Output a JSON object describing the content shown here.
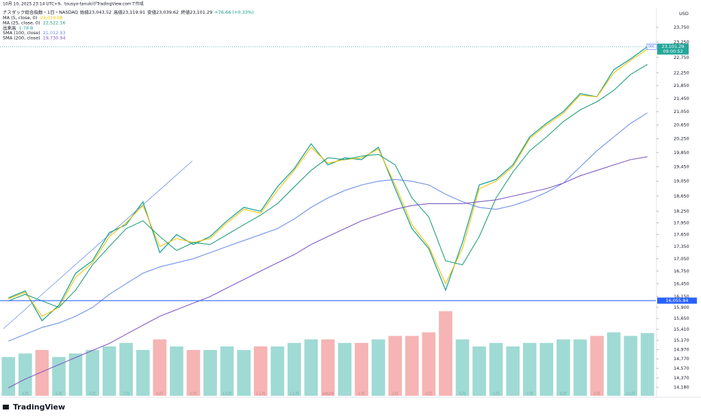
{
  "chart_data": {
    "type": "line",
    "caption": "10月 10, 2025 23:14 UTC+9、tousyo-tanukiがTradingView.comで作成",
    "currency": "USD",
    "brand": "TradingView",
    "ohlc_labels": [
      "始値23,043.52",
      "高値23,119.91",
      "安値23,039.62",
      "終値23,101.29",
      "+76.66 (+0.33%)"
    ],
    "log": true,
    "grid": false,
    "categories": [
      null,
      "4月",
      null,
      "5月",
      null,
      "6月",
      null,
      "7月",
      null,
      "8月",
      null,
      "9月",
      null,
      "10月",
      null,
      "11月",
      null,
      "12月",
      null,
      "2025",
      null,
      "2月",
      null,
      "3月",
      null,
      "4月",
      null,
      "5月",
      null,
      "6月",
      null,
      "7月",
      null,
      "8月",
      null,
      "9月",
      null,
      "10月",
      null
    ],
    "ylim": [
      14010,
      24410
    ],
    "yticks": [
      {
        "value": 14180,
        "label": "14,180"
      },
      {
        "value": 14370,
        "label": "14,370"
      },
      {
        "value": 14570,
        "label": "14,570"
      },
      {
        "value": 14770,
        "label": "14,770"
      },
      {
        "value": 14970,
        "label": "14,970"
      },
      {
        "value": 15170,
        "label": "15,170"
      },
      {
        "value": 15410,
        "label": "15,410"
      },
      {
        "value": 15650,
        "label": "15,650"
      },
      {
        "value": 15900,
        "label": "15,900"
      },
      {
        "value": 16150,
        "label": "16,150"
      },
      {
        "value": 16450,
        "label": "16,450"
      },
      {
        "value": 16750,
        "label": "16,750"
      },
      {
        "value": 17050,
        "label": "17,050"
      },
      {
        "value": 17350,
        "label": "17,350"
      },
      {
        "value": 17650,
        "label": "17,650"
      },
      {
        "value": 17950,
        "label": "17,950"
      },
      {
        "value": 18250,
        "label": "18,250"
      },
      {
        "value": 18650,
        "label": "18,650"
      },
      {
        "value": 19050,
        "label": "19,050"
      },
      {
        "value": 19450,
        "label": "19,450"
      },
      {
        "value": 19850,
        "label": "19,850"
      },
      {
        "value": 20250,
        "label": "20,250"
      },
      {
        "value": 20650,
        "label": "20,650"
      },
      {
        "value": 21050,
        "label": "21,050"
      },
      {
        "value": 21450,
        "label": "21,450"
      },
      {
        "value": 21850,
        "label": "21,850"
      },
      {
        "value": 22250,
        "label": "22,250"
      },
      {
        "value": 22750,
        "label": "22,750"
      },
      {
        "value": 23250,
        "label": "23,250"
      },
      {
        "value": 23750,
        "label": "23,750"
      }
    ],
    "y2lim": [
      0,
      11
    ],
    "up_color": "#8fd3cc",
    "down_color": "#f4a7a7",
    "series": [
      {
        "name": "ナスダック総合指数・1日・NASDAQ",
        "color": "#26a69a",
        "values": [
          16120,
          16280,
          15600,
          15950,
          16700,
          17000,
          17700,
          17900,
          18500,
          17200,
          17650,
          17400,
          17600,
          18000,
          18350,
          18250,
          18900,
          19400,
          20100,
          19500,
          19700,
          19650,
          20000,
          18850,
          17800,
          17300,
          16300,
          17450,
          18950,
          19100,
          19500,
          20300,
          20700,
          21050,
          21600,
          21500,
          22350,
          22700,
          23101.29
        ]
      },
      {
        "name": "MA (5, close, 0)",
        "last_label": "23,019.08",
        "color": "#f2c200",
        "values": [
          16100,
          16250,
          15700,
          15900,
          16600,
          16950,
          17600,
          17950,
          18400,
          17350,
          17550,
          17450,
          17550,
          17950,
          18300,
          18200,
          18800,
          19350,
          20000,
          19550,
          19650,
          19700,
          19950,
          18950,
          17900,
          17350,
          16450,
          17300,
          18850,
          19050,
          19450,
          20250,
          20650,
          21000,
          21550,
          21500,
          22250,
          22650,
          23019.08
        ]
      },
      {
        "name": "MA (25, close, 0)",
        "last_label": "22,522.16",
        "color": "#1e9b7a",
        "values": [
          16050,
          16200,
          16050,
          15900,
          16300,
          16900,
          17350,
          17800,
          18000,
          17600,
          17250,
          17450,
          17400,
          17650,
          17900,
          18150,
          18450,
          18900,
          19350,
          19700,
          19650,
          19750,
          19800,
          19500,
          18600,
          18100,
          17000,
          16900,
          17600,
          18600,
          19300,
          19900,
          20300,
          20750,
          21100,
          21350,
          21700,
          22200,
          22522.16
        ]
      },
      {
        "name": "出来高",
        "last_label": "1.78 B",
        "color": "#26a69a",
        "axis": "y2",
        "values": [
          1.1,
          1.2,
          1.3,
          1.1,
          1.2,
          1.3,
          1.4,
          1.5,
          1.3,
          1.6,
          1.4,
          1.3,
          1.3,
          1.4,
          1.3,
          1.4,
          1.4,
          1.5,
          1.6,
          1.6,
          1.5,
          1.5,
          1.6,
          1.7,
          1.7,
          1.8,
          2.4,
          1.6,
          1.4,
          1.5,
          1.4,
          1.5,
          1.5,
          1.6,
          1.6,
          1.7,
          1.8,
          1.7,
          1.78
        ]
      },
      {
        "name": "SMA (100, close)",
        "last_label": "21,012.93",
        "color": "#6a8ee8",
        "values": [
          15150,
          15300,
          15450,
          15550,
          15700,
          15900,
          16200,
          16450,
          16700,
          16850,
          16950,
          17050,
          17200,
          17350,
          17500,
          17650,
          17800,
          18050,
          18350,
          18600,
          18800,
          18950,
          19050,
          19100,
          19050,
          18950,
          18700,
          18500,
          18350,
          18300,
          18400,
          18550,
          18750,
          19000,
          19450,
          19900,
          20300,
          20700,
          21012.93
        ]
      },
      {
        "name": "SMA (200, close)",
        "last_label": "19,730.94",
        "color": "#7e57c2",
        "values": [
          14170,
          14350,
          14500,
          14650,
          14800,
          14950,
          15100,
          15300,
          15500,
          15700,
          15850,
          16000,
          16150,
          16350,
          16550,
          16750,
          16950,
          17150,
          17400,
          17600,
          17800,
          18000,
          18150,
          18300,
          18400,
          18450,
          18450,
          18450,
          18500,
          18550,
          18650,
          18750,
          18850,
          19000,
          19200,
          19350,
          19500,
          19650,
          19730.94
        ]
      }
    ],
    "last_price": {
      "symbol": "IXIC",
      "value": 23101.29,
      "label": "23,101.29",
      "countdown": "09:00:52",
      "color": "#26a69a"
    },
    "hline": {
      "value": 16055.84,
      "label": "16,055.84",
      "color": "#2962ff"
    }
  }
}
